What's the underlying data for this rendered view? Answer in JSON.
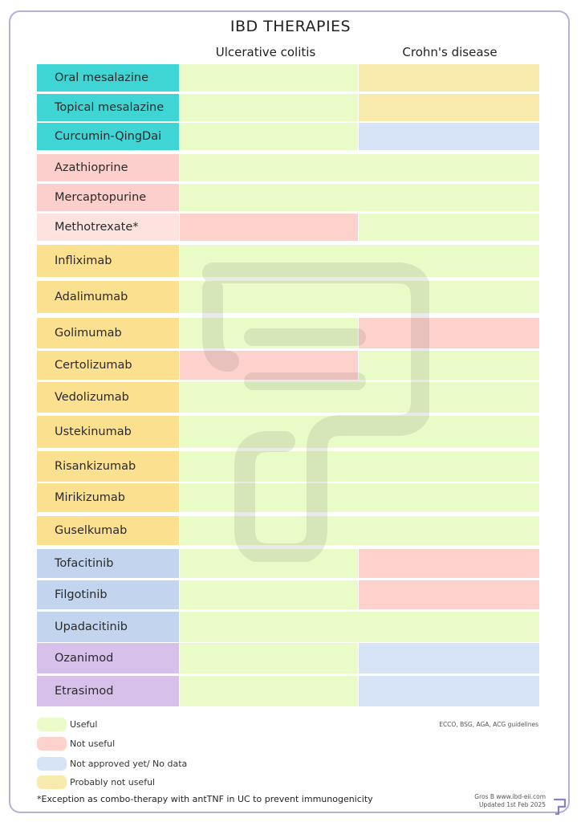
{
  "colors": {
    "useful": "#e9fbc7",
    "not_useful": "#fdd1cc",
    "no_data": "#d7e4f8",
    "probably_not": "#f8e9ad",
    "cat_teal": "#3fd5d4",
    "cat_pink": "#fccfcc",
    "cat_pink_light": "#fde3df",
    "cat_yellow": "#fbe08f",
    "cat_blue": "#c2d4ee",
    "cat_purple": "#d7c1ea"
  },
  "title": "IBD THERAPIES",
  "columns": {
    "uc": "Ulcerative colitis",
    "cd": "Crohn's disease"
  },
  "rows": [
    {
      "drug": "Oral mesalazine",
      "cat": "cat_teal",
      "uc": "useful",
      "cd": "probably_not"
    },
    {
      "drug": "Topical mesalazine",
      "cat": "cat_teal",
      "uc": "useful",
      "cd": "probably_not"
    },
    {
      "drug": "Curcumin-QingDai",
      "cat": "cat_teal",
      "uc": "useful",
      "cd": "no_data"
    },
    {
      "drug": "Azathioprine",
      "cat": "cat_pink",
      "uc": "useful",
      "cd": "useful",
      "merged": true
    },
    {
      "drug": "Mercaptopurine",
      "cat": "cat_pink",
      "uc": "useful",
      "cd": "useful",
      "merged": true
    },
    {
      "drug": "Methotrexate*",
      "cat": "cat_pink_light",
      "uc": "not_useful",
      "cd": "useful"
    },
    {
      "drug": "Infliximab",
      "cat": "cat_yellow",
      "uc": "useful",
      "cd": "useful",
      "merged": true
    },
    {
      "drug": "Adalimumab",
      "cat": "cat_yellow",
      "uc": "useful",
      "cd": "useful",
      "merged": true
    },
    {
      "drug": "Golimumab",
      "cat": "cat_yellow",
      "uc": "useful",
      "cd": "not_useful"
    },
    {
      "drug": "Certolizumab",
      "cat": "cat_yellow",
      "uc": "not_useful",
      "cd": "useful"
    },
    {
      "drug": "Vedolizumab",
      "cat": "cat_yellow",
      "uc": "useful",
      "cd": "useful",
      "merged": true
    },
    {
      "drug": "Ustekinumab",
      "cat": "cat_yellow",
      "uc": "useful",
      "cd": "useful",
      "merged": true
    },
    {
      "drug": "Risankizumab",
      "cat": "cat_yellow",
      "uc": "useful",
      "cd": "useful",
      "merged": true
    },
    {
      "drug": "Mirikizumab",
      "cat": "cat_yellow",
      "uc": "useful",
      "cd": "useful",
      "merged": true
    },
    {
      "drug": "Guselkumab",
      "cat": "cat_yellow",
      "uc": "useful",
      "cd": "useful",
      "merged": true
    },
    {
      "drug": "Tofacitinib",
      "cat": "cat_blue",
      "uc": "useful",
      "cd": "not_useful"
    },
    {
      "drug": "Filgotinib",
      "cat": "cat_blue",
      "uc": "useful",
      "cd": "not_useful"
    },
    {
      "drug": "Upadacitinib",
      "cat": "cat_blue",
      "uc": "useful",
      "cd": "useful",
      "merged": true
    },
    {
      "drug": "Ozanimod",
      "cat": "cat_purple",
      "uc": "useful",
      "cd": "no_data"
    },
    {
      "drug": "Etrasimod",
      "cat": "cat_purple",
      "uc": "useful",
      "cd": "no_data"
    }
  ],
  "legend": [
    {
      "key": "useful",
      "label": "Useful"
    },
    {
      "key": "not_useful",
      "label": "Not useful"
    },
    {
      "key": "no_data",
      "label": "Not approved yet/ No data"
    },
    {
      "key": "probably_not",
      "label": "Probably not useful"
    }
  ],
  "guidelines": "ECCO, BSG, AGA, ACG guidelines",
  "credit": "Gros B www.ibd-eii.com",
  "updated": "Updated 1st Feb 2025",
  "footnote": "*Exception as combo-therapy with antTNF in UC to prevent immunogenicity"
}
